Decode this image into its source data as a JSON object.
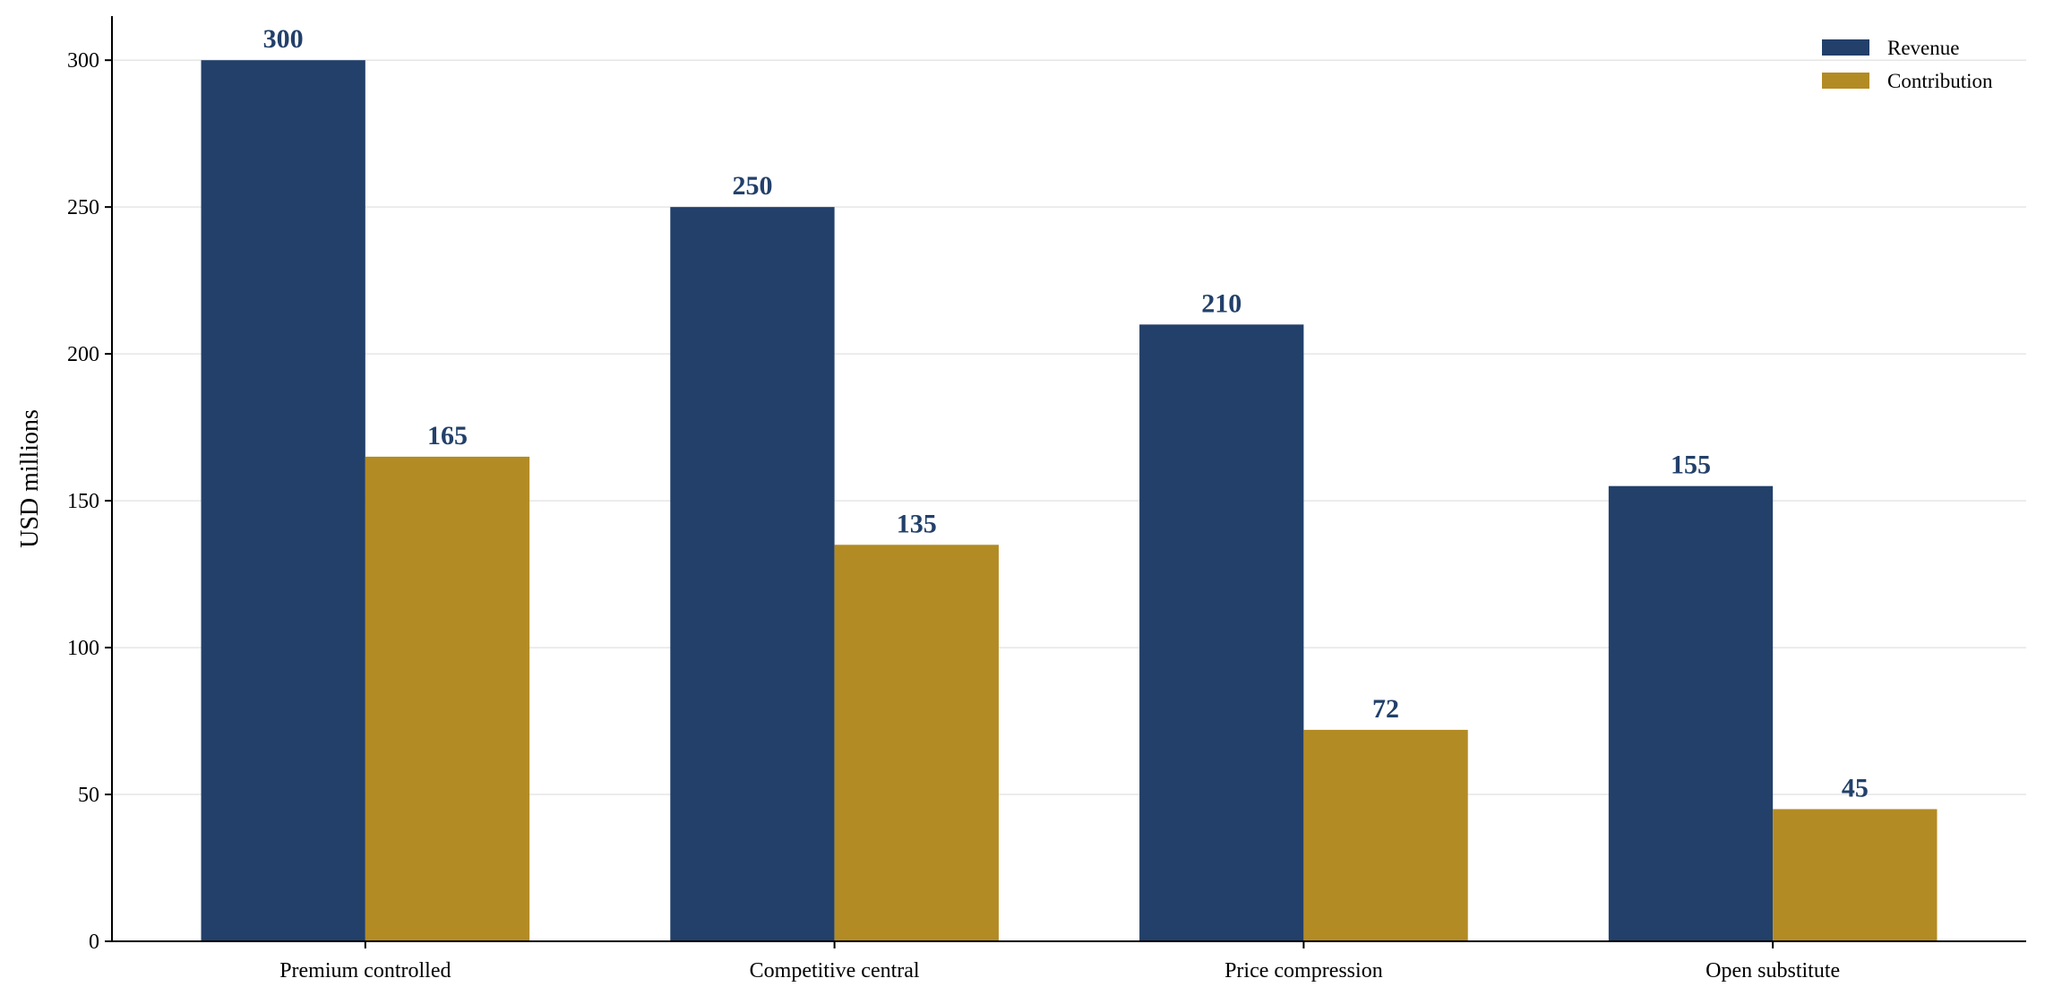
{
  "chart_data": {
    "type": "bar",
    "title": "",
    "xlabel": "",
    "ylabel": "USD millions",
    "ylim": [
      0,
      315
    ],
    "yticks": [
      0,
      50,
      100,
      150,
      200,
      250,
      300
    ],
    "grid": "horizontal",
    "legend_position": "top-right",
    "categories": [
      "Premium controlled",
      "Competitive central",
      "Price compression",
      "Open substitute"
    ],
    "series": [
      {
        "name": "Revenue",
        "color": "#22406a",
        "values": [
          300,
          250,
          210,
          155
        ]
      },
      {
        "name": "Contribution",
        "color": "#b38b24",
        "values": [
          165,
          135,
          72,
          45
        ]
      }
    ],
    "data_label_color": "#22406a"
  }
}
